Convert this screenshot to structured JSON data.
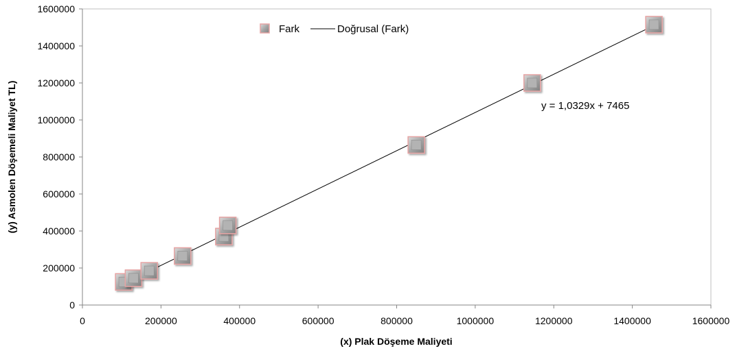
{
  "chart_data": {
    "type": "scatter",
    "xlabel": "(x) Plak Döşeme Maliyeti",
    "ylabel": "(y)  Asmolen Döşemeli  Maliyet  TL)",
    "xlim": [
      0,
      1600000
    ],
    "ylim": [
      0,
      1600000
    ],
    "x_ticks": [
      "0",
      "200000",
      "400000",
      "600000",
      "800000",
      "1000000",
      "1200000",
      "1400000",
      "1600000"
    ],
    "y_ticks": [
      "0",
      "200000",
      "400000",
      "600000",
      "800000",
      "1000000",
      "1200000",
      "1400000",
      "1600000"
    ],
    "grid": false,
    "legend_position": "top",
    "series": [
      {
        "name": "Fark",
        "marker": "square",
        "color": "#a6a6a6",
        "edge_color": "#e6a3a3",
        "points": [
          {
            "x": 105000,
            "y": 125000
          },
          {
            "x": 130000,
            "y": 145000
          },
          {
            "x": 170000,
            "y": 185000
          },
          {
            "x": 255000,
            "y": 265000
          },
          {
            "x": 360000,
            "y": 370000
          },
          {
            "x": 370000,
            "y": 430000
          },
          {
            "x": 850000,
            "y": 865000
          },
          {
            "x": 1145000,
            "y": 1200000
          },
          {
            "x": 1455000,
            "y": 1515000
          }
        ]
      }
    ],
    "trendline": {
      "name": "Doğrusal (Fark)",
      "slope": 1.0329,
      "intercept": 7465,
      "x_range": [
        105000,
        1455000
      ],
      "color": "#000000",
      "equation_label": "y = 1,0329x + 7465"
    }
  }
}
